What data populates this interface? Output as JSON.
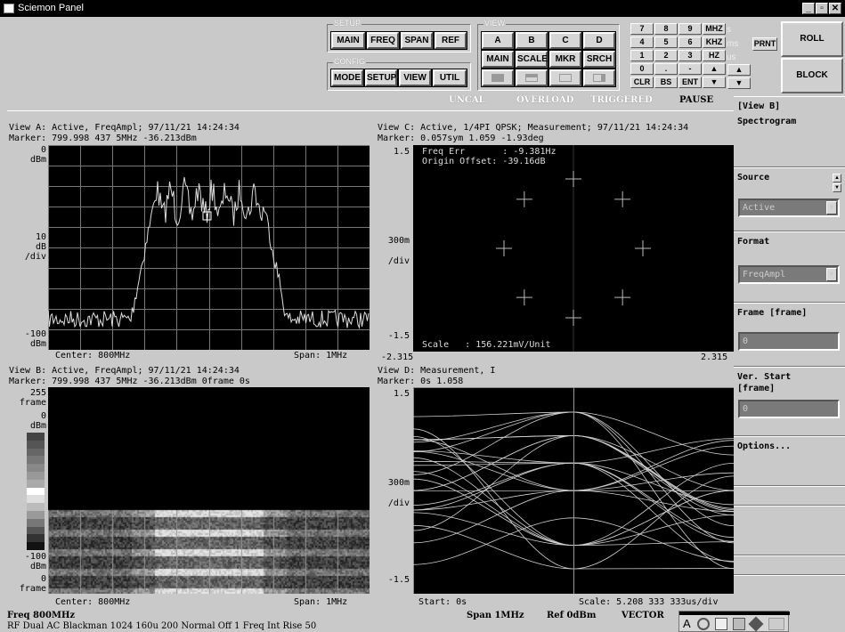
{
  "window": {
    "title": "Sciemon Panel",
    "min": "_",
    "max": "▫",
    "close": "✕"
  },
  "setup": {
    "label": "SETUP",
    "buttons": [
      "MAIN",
      "FREQ",
      "SPAN",
      "REF"
    ]
  },
  "config": {
    "label": "CONFIG",
    "buttons": [
      "MODE",
      "SETUP",
      "VIEW",
      "UTIL"
    ]
  },
  "view_group": {
    "label": "VIEW",
    "row1": [
      "A",
      "B",
      "C",
      "D"
    ],
    "row2": [
      "MAIN",
      "SCALE",
      "MKR",
      "SRCH"
    ]
  },
  "keypad": {
    "rows": [
      [
        "7",
        "8",
        "9",
        "MHZ"
      ],
      [
        "4",
        "5",
        "6",
        "KHZ"
      ],
      [
        "1",
        "2",
        "3",
        "HZ"
      ],
      [
        "0",
        ".",
        "-",
        "▲"
      ],
      [
        "CLR",
        "BS",
        "ENT",
        "▼"
      ]
    ],
    "units": [
      "s",
      "ms",
      "us"
    ],
    "prnt": "PRNT",
    "extra_up": "▲",
    "extra_down": "▼"
  },
  "side_buttons": {
    "roll": "ROLL",
    "block": "BLOCK"
  },
  "status": {
    "uncal": "UNCAL",
    "overload": "OVERLOAD",
    "triggered": "TRIGGERED",
    "pause": "PAUSE"
  },
  "viewA": {
    "line1": "View A: Active, FreqAmpl; 97/11/21 14:24:34",
    "line2": "Marker: 799.998 437 5MHz  -36.213dBm",
    "y_top": "0",
    "y_top_unit": "dBm",
    "y_mid1": "10",
    "y_mid2": "dB",
    "y_mid3": "/div",
    "y_bot": "-100",
    "y_bot_unit": "dBm",
    "footer_left": "Center: 800MHz",
    "footer_right": "Span: 1MHz"
  },
  "viewB": {
    "line1": "View B: Active, FreqAmpl; 97/11/21 14:24:34",
    "line2": "Marker: 799.998 437 5MHz  -36.213dBm  0frame  0s",
    "y_top": "255",
    "y_top_unit": "frame",
    "y_db0": "0",
    "y_db0_unit": "dBm",
    "y_db100": "-100",
    "y_db100_unit": "dBm",
    "y_bot": "0",
    "y_bot_unit": "frame",
    "footer_left": "Center: 800MHz",
    "footer_right": "Span: 1MHz"
  },
  "viewC": {
    "line1": "View C: Active, 1/4PI QPSK; Measurement; 97/11/21 14:24:34",
    "line2": "Marker: 0.057sym  1.059  -1.93deg",
    "y_top": "1.5",
    "y_mid1": "300m",
    "y_mid2": "/div",
    "y_bot": "-1.5",
    "freq_err": "Freq Err       : -9.381Hz",
    "origin_offset": "Origin Offset: -39.16dB",
    "scale": "Scale   : 156.221mV/Unit",
    "x_left": "-2.315",
    "x_right": "2.315"
  },
  "viewD": {
    "line1": "View D: Measurement, I",
    "line2": "Marker: 0s  1.058",
    "y_top": "1.5",
    "y_mid1": "300m",
    "y_mid2": "/div",
    "y_bot": "-1.5",
    "footer_left": "Start: 0s",
    "footer_right": "Scale: 5.208 333 333us/div"
  },
  "right_panel": {
    "title": "[View B]",
    "subtitle": "Spectrogram",
    "source_label": "Source",
    "source_value": "Active",
    "format_label": "Format",
    "format_value": "FreqAmpl",
    "frame_label": "Frame [frame]",
    "frame_value": "0",
    "verstart_label1": "Ver. Start",
    "verstart_label2": "[frame]",
    "verstart_value": "0",
    "options": "Options..."
  },
  "bottom": {
    "freq": "Freq 800MHz",
    "span": "Span 1MHz",
    "ref": "Ref 0dBm",
    "mode": "VECTOR",
    "settings": "RF Dual AC Blackman 1024 160u 200 Normal Off 1 Freq Int Rise 50"
  }
}
